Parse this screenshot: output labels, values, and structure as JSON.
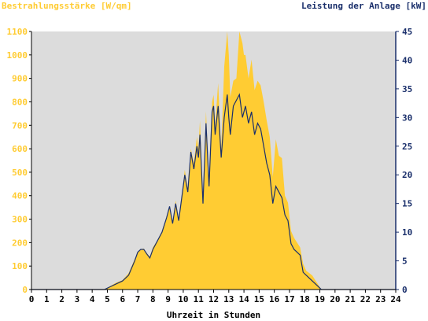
{
  "chart_data": {
    "type": "area",
    "left_axis_title": "Bestrahlungsstärke [W/qm]",
    "right_axis_title": "Leistung der Anlage [kW]",
    "xlabel": "Uhrzeit in Stunden",
    "x_range": [
      0,
      24
    ],
    "x_ticks": [
      "0",
      "1",
      "2",
      "3",
      "4",
      "5",
      "6",
      "7",
      "8",
      "9",
      "10",
      "11",
      "12",
      "13",
      "14",
      "15",
      "16",
      "17",
      "18",
      "19",
      "20",
      "21",
      "22",
      "23",
      "24"
    ],
    "y_left_range": [
      0,
      1100
    ],
    "y_left_ticks": [
      "0",
      "100",
      "200",
      "300",
      "400",
      "500",
      "600",
      "700",
      "800",
      "900",
      "1000",
      "1100"
    ],
    "y_right_range": [
      0,
      45
    ],
    "y_right_ticks": [
      "0",
      "5",
      "10",
      "15",
      "20",
      "25",
      "30",
      "35",
      "40",
      "45"
    ],
    "grid": false,
    "colors": {
      "irradiance": "#ffcc33",
      "power": "#1a2f6b",
      "plot_bg": "#dcdcdc"
    },
    "series": [
      {
        "name": "Bestrahlungsstärke [W/qm]",
        "axis": "left",
        "style": "area",
        "x": [
          0,
          4.8,
          5.2,
          5.6,
          6,
          6.4,
          6.8,
          7,
          7.2,
          7.4,
          7.6,
          7.8,
          8,
          8.3,
          8.6,
          8.9,
          9.1,
          9.3,
          9.5,
          9.7,
          9.9,
          10.1,
          10.3,
          10.5,
          10.7,
          10.9,
          11,
          11.1,
          11.3,
          11.5,
          11.7,
          11.9,
          12,
          12.1,
          12.3,
          12.5,
          12.7,
          12.9,
          13,
          13.1,
          13.3,
          13.5,
          13.7,
          13.9,
          14,
          14.1,
          14.3,
          14.5,
          14.7,
          14.9,
          15.1,
          15.3,
          15.5,
          15.7,
          15.9,
          16.1,
          16.3,
          16.5,
          16.7,
          16.9,
          17.1,
          17.3,
          17.5,
          17.7,
          17.9,
          18.1,
          18.3,
          18.5,
          18.7,
          18.9,
          19.1,
          19.3,
          19.5,
          19.7,
          19.9,
          20.1,
          20.3,
          20.5,
          24
        ],
        "y": [
          0,
          0,
          15,
          30,
          40,
          70,
          130,
          160,
          170,
          175,
          155,
          140,
          180,
          210,
          250,
          310,
          350,
          290,
          380,
          300,
          400,
          510,
          430,
          600,
          540,
          650,
          600,
          720,
          380,
          760,
          450,
          800,
          830,
          700,
          880,
          600,
          950,
          1100,
          1000,
          820,
          890,
          900,
          1100,
          1050,
          1000,
          1000,
          900,
          980,
          850,
          890,
          870,
          800,
          720,
          650,
          480,
          640,
          570,
          560,
          400,
          370,
          250,
          220,
          200,
          180,
          110,
          80,
          70,
          60,
          40,
          20,
          0,
          0,
          0,
          0,
          0,
          0,
          0,
          0,
          0
        ]
      },
      {
        "name": "Leistung der Anlage [kW]",
        "axis": "right",
        "style": "line",
        "x": [
          0,
          4.8,
          5.2,
          5.6,
          6,
          6.4,
          6.8,
          7,
          7.2,
          7.4,
          7.6,
          7.8,
          8,
          8.3,
          8.6,
          8.9,
          9.1,
          9.3,
          9.5,
          9.7,
          9.9,
          10.1,
          10.3,
          10.5,
          10.7,
          10.9,
          11,
          11.1,
          11.3,
          11.5,
          11.7,
          11.9,
          12,
          12.1,
          12.3,
          12.5,
          12.7,
          12.9,
          13,
          13.1,
          13.3,
          13.5,
          13.7,
          13.9,
          14,
          14.1,
          14.3,
          14.5,
          14.7,
          14.9,
          15.1,
          15.3,
          15.5,
          15.7,
          15.9,
          16.1,
          16.3,
          16.5,
          16.7,
          16.9,
          17.1,
          17.3,
          17.5,
          17.7,
          17.9,
          18.1,
          18.3,
          18.5,
          18.7,
          18.9,
          19.1,
          19.3,
          19.5,
          19.7,
          19.9,
          20.1,
          20.3,
          20.5,
          24
        ],
        "y": [
          0,
          0,
          0.5,
          1,
          1.5,
          2.5,
          5,
          6.5,
          7,
          7,
          6.2,
          5.5,
          7,
          8.5,
          10,
          12.5,
          14.5,
          11.5,
          15,
          12,
          16,
          20,
          17,
          24,
          21,
          25,
          23,
          27,
          15,
          29,
          18,
          31,
          32,
          27,
          32,
          23,
          30,
          34,
          30,
          27,
          32,
          33,
          34,
          30,
          31,
          32,
          29,
          31,
          27,
          29,
          28,
          25,
          22,
          20,
          15,
          18,
          17,
          16,
          13,
          12,
          8,
          7,
          6.5,
          6,
          3,
          2.5,
          2,
          1.5,
          1,
          0.5,
          0,
          0,
          0,
          0,
          0,
          0,
          0,
          0,
          0
        ]
      }
    ]
  }
}
